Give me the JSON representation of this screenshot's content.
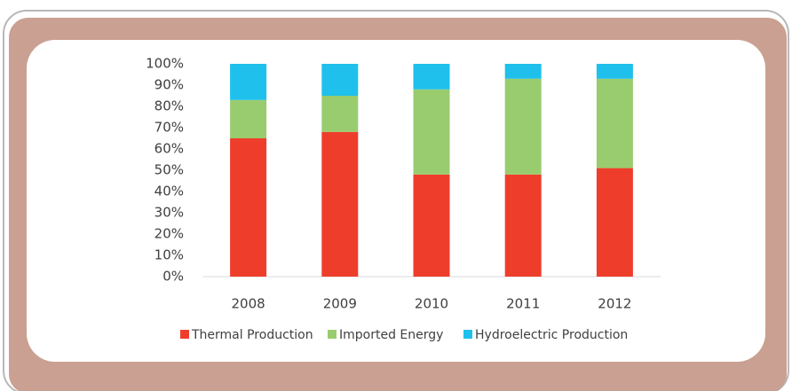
{
  "chart_data": {
    "type": "bar",
    "stacked": true,
    "categories": [
      "2008",
      "2009",
      "2010",
      "2011",
      "2012"
    ],
    "series": [
      {
        "name": "Thermal Production",
        "color": "#ee3e2b",
        "values": [
          65,
          68,
          48,
          48,
          51
        ]
      },
      {
        "name": "Imported Energy",
        "color": "#99cc6e",
        "values": [
          18,
          17,
          40,
          45,
          42
        ]
      },
      {
        "name": "Hydroelectric Production",
        "color": "#1fc0ec",
        "values": [
          17,
          15,
          12,
          7,
          7
        ]
      }
    ],
    "ylim": [
      0,
      100
    ],
    "yticks": [
      {
        "value": 0,
        "label": "0%"
      },
      {
        "value": 10,
        "label": "10%"
      },
      {
        "value": 20,
        "label": "20%"
      },
      {
        "value": 30,
        "label": "30%"
      },
      {
        "value": 40,
        "label": "40%"
      },
      {
        "value": 50,
        "label": "50%"
      },
      {
        "value": 60,
        "label": "60%"
      },
      {
        "value": 70,
        "label": "70%"
      },
      {
        "value": 80,
        "label": "80%"
      },
      {
        "value": 90,
        "label": "90%"
      },
      {
        "value": 100,
        "label": "100%"
      }
    ],
    "grid": false,
    "legend": "bottom"
  }
}
